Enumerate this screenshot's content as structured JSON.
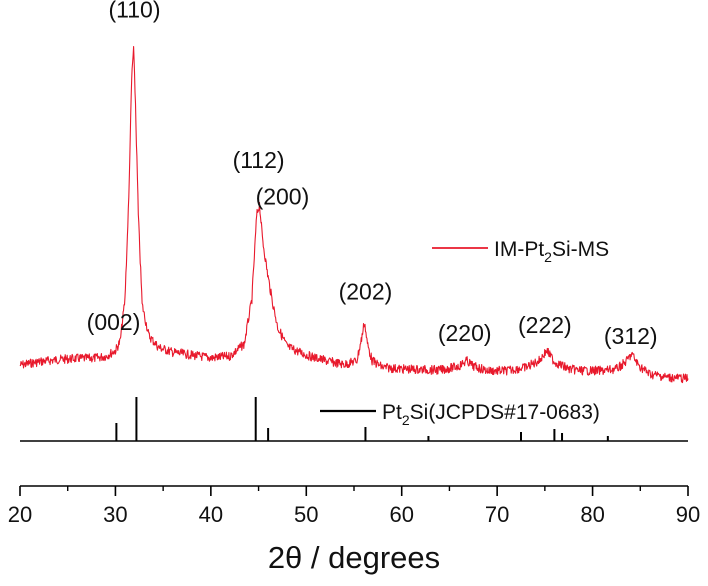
{
  "chart_data": {
    "type": "line",
    "xlabel": "2θ / degrees",
    "xlim": [
      20,
      90
    ],
    "xticks": [
      20,
      30,
      40,
      50,
      60,
      70,
      80,
      90
    ],
    "colors": {
      "pattern": "#e8192c",
      "reference": "#000000"
    },
    "series": [
      {
        "name": "IM-Pt2Si-MS",
        "legend_base": "IM-Pt",
        "legend_sub": "2",
        "legend_tail": "Si-MS",
        "x": [
          20,
          21,
          22,
          23,
          24,
          25,
          26,
          27,
          28,
          29,
          30,
          30.5,
          31,
          31.4,
          31.7,
          31.9,
          32.1,
          32.4,
          32.8,
          33.5,
          34.5,
          36,
          38,
          40,
          42,
          43.5,
          44.3,
          44.8,
          45.1,
          45.4,
          45.9,
          46.4,
          47,
          48,
          50,
          52,
          54,
          55.3,
          55.8,
          56.1,
          56.4,
          56.9,
          58,
          60,
          62,
          64,
          66,
          66.8,
          67.5,
          69,
          71,
          73,
          74.4,
          75.2,
          76,
          77.5,
          79,
          81,
          82.5,
          83.5,
          84.1,
          84.8,
          86,
          88,
          90
        ],
        "y": [
          32,
          35,
          38,
          40,
          42,
          43,
          44,
          44,
          45,
          48,
          58,
          75,
          150,
          330,
          545,
          600,
          500,
          300,
          140,
          85,
          64,
          55,
          50,
          45,
          48,
          70,
          150,
          300,
          320,
          260,
          200,
          150,
          100,
          65,
          50,
          40,
          33,
          40,
          80,
          110,
          70,
          40,
          28,
          25,
          24,
          23,
          30,
          40,
          30,
          22,
          22,
          28,
          40,
          58,
          38,
          25,
          22,
          22,
          25,
          38,
          52,
          32,
          16,
          10,
          8
        ]
      },
      {
        "name": "Pt2Si(JCPDS#17-0683)",
        "legend_base": "Pt",
        "legend_sub": "2",
        "legend_tail": "Si(JCPDS#17-0683)",
        "x": [
          30.1,
          32.2,
          44.7,
          46.0,
          56.2,
          62.8,
          72.5,
          76.0,
          76.8,
          81.6
        ],
        "y": [
          18,
          44,
          44,
          13,
          14,
          5,
          9,
          12,
          8,
          5
        ]
      }
    ],
    "annotations": [
      {
        "text": "(002)",
        "x": 29.8,
        "y": 95
      },
      {
        "text": "(110)",
        "x": 32.0,
        "y": 655
      },
      {
        "text": "(112)",
        "x": 45.0,
        "y": 385
      },
      {
        "text": "(200)",
        "x": 47.5,
        "y": 320
      },
      {
        "text": "(202)",
        "x": 56.2,
        "y": 150
      },
      {
        "text": "(220)",
        "x": 66.6,
        "y": 75
      },
      {
        "text": "(222)",
        "x": 75.0,
        "y": 90
      },
      {
        "text": "(312)",
        "x": 84.0,
        "y": 70
      }
    ]
  }
}
